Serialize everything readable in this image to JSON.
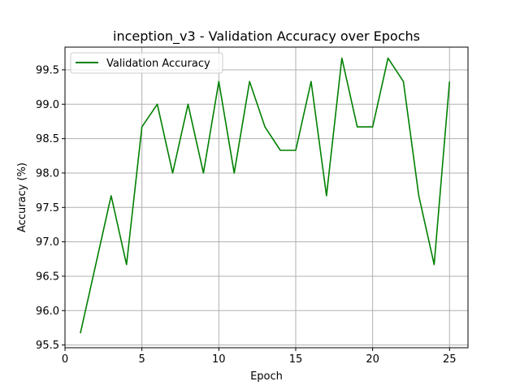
{
  "chart_data": {
    "type": "line",
    "title": "inception_v3 - Validation Accuracy over Epochs",
    "xlabel": "Epoch",
    "ylabel": "Accuracy (%)",
    "xlim": [
      0,
      26.2
    ],
    "ylim": [
      95.46,
      99.83
    ],
    "xticks": [
      0,
      5,
      10,
      15,
      20,
      25
    ],
    "yticks": [
      95.5,
      96.0,
      96.5,
      97.0,
      97.5,
      98.0,
      98.5,
      99.0,
      99.5
    ],
    "xtick_labels": [
      "0",
      "5",
      "10",
      "15",
      "20",
      "25"
    ],
    "ytick_labels": [
      "95.5",
      "96.0",
      "96.5",
      "97.0",
      "97.5",
      "98.0",
      "98.5",
      "99.0",
      "99.5"
    ],
    "grid": true,
    "legend_position": "top-left",
    "series": [
      {
        "name": "Validation Accuracy",
        "color": "#008000",
        "x": [
          1,
          2,
          3,
          4,
          5,
          6,
          7,
          8,
          9,
          10,
          11,
          12,
          13,
          14,
          15,
          16,
          17,
          18,
          19,
          20,
          21,
          22,
          23,
          24,
          25
        ],
        "y": [
          95.67,
          96.67,
          97.67,
          96.67,
          98.67,
          99.0,
          98.0,
          99.0,
          98.0,
          99.33,
          98.0,
          99.33,
          98.67,
          98.33,
          98.33,
          99.33,
          97.67,
          99.67,
          98.67,
          98.67,
          99.67,
          99.33,
          97.67,
          96.67,
          99.33
        ]
      }
    ]
  }
}
